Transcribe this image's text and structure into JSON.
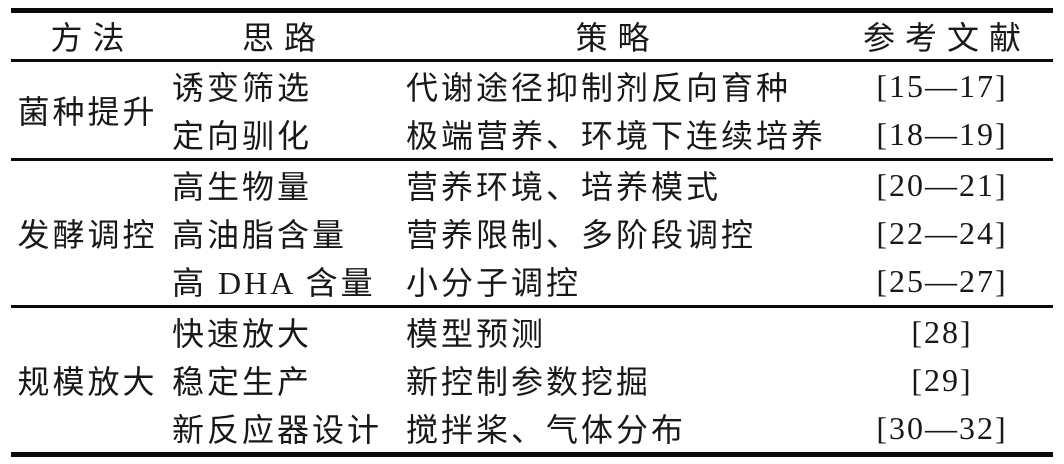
{
  "colors": {
    "text": "#181818",
    "rule": "#0a0a0a",
    "background": "#ffffff"
  },
  "table": {
    "columns": [
      {
        "label": "方法"
      },
      {
        "label": "思路"
      },
      {
        "label": "策略"
      },
      {
        "label": "参考文献"
      }
    ],
    "sections": [
      {
        "method": "菌种提升",
        "rows": [
          {
            "idea": "诱变筛选",
            "strategy": "代谢途径抑制剂反向育种",
            "refs": "[15—17]"
          },
          {
            "idea": "定向驯化",
            "strategy": "极端营养、环境下连续培养",
            "refs": "[18—19]"
          }
        ]
      },
      {
        "method": "发酵调控",
        "rows": [
          {
            "idea": "高生物量",
            "strategy": "营养环境、培养模式",
            "refs": "[20—21]"
          },
          {
            "idea": "高油脂含量",
            "strategy": "营养限制、多阶段调控",
            "refs": "[22—24]"
          },
          {
            "idea": "高 DHA 含量",
            "strategy": "小分子调控",
            "refs": "[25—27]"
          }
        ]
      },
      {
        "method": "规模放大",
        "rows": [
          {
            "idea": "快速放大",
            "strategy": "模型预测",
            "refs": "[28]"
          },
          {
            "idea": "稳定生产",
            "strategy": "新控制参数挖掘",
            "refs": "[29]"
          },
          {
            "idea": "新反应器设计",
            "strategy": "搅拌桨、气体分布",
            "refs": "[30—32]"
          }
        ]
      }
    ]
  }
}
